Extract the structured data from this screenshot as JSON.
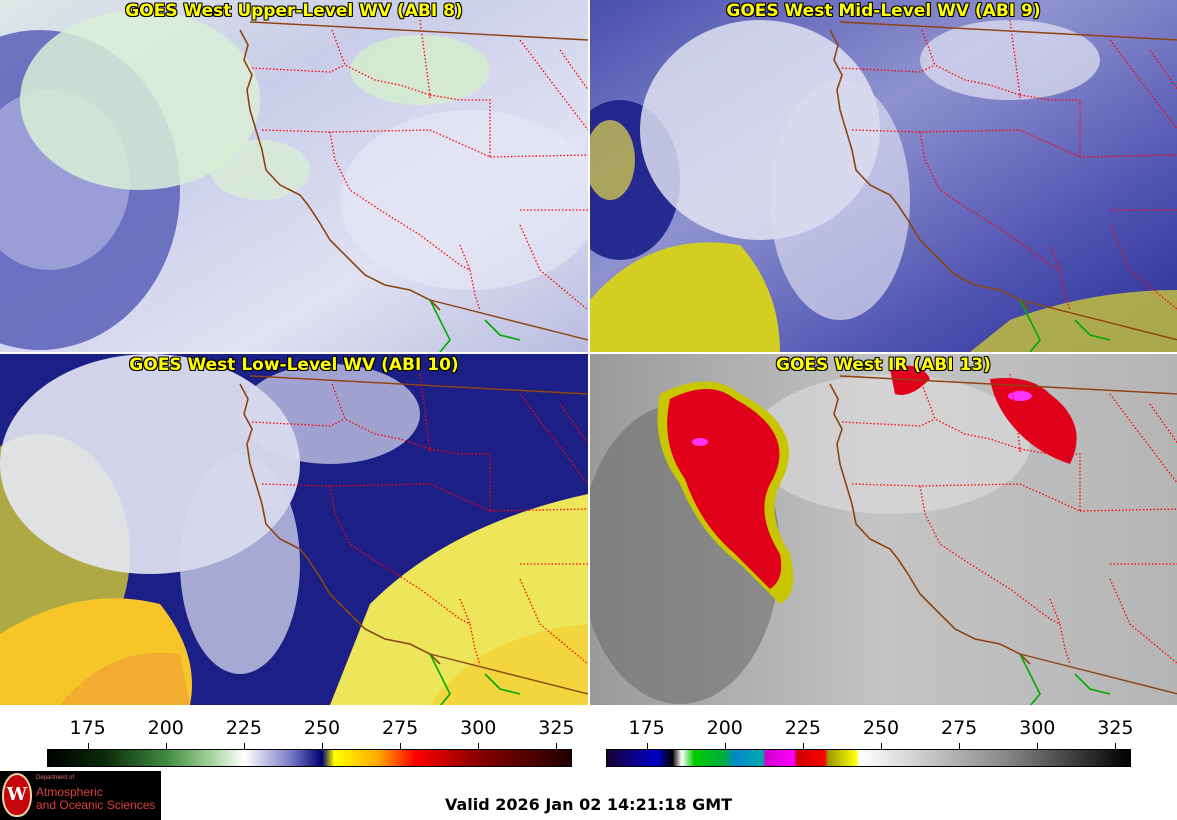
{
  "panels": [
    {
      "title": "GOES West Upper-Level WV (ABI 8)",
      "palette": "wv"
    },
    {
      "title": "GOES West Mid-Level WV (ABI 9)",
      "palette": "wv"
    },
    {
      "title": "GOES West Low-Level WV (ABI 10)",
      "palette": "wv"
    },
    {
      "title": "GOES West IR (ABI 13)",
      "palette": "ir"
    }
  ],
  "colorbars": [
    {
      "ticks": [
        "175",
        "200",
        "225",
        "250",
        "275",
        "300",
        "325"
      ],
      "tick_values": [
        175,
        200,
        225,
        250,
        275,
        300,
        325
      ],
      "range": [
        162,
        330
      ],
      "stops": [
        {
          "v": 162,
          "c": "#000000"
        },
        {
          "v": 180,
          "c": "#0a2a0a"
        },
        {
          "v": 200,
          "c": "#3f8a3f"
        },
        {
          "v": 215,
          "c": "#a8d6a0"
        },
        {
          "v": 225,
          "c": "#ffffff"
        },
        {
          "v": 240,
          "c": "#7b7bc8"
        },
        {
          "v": 250,
          "c": "#000070"
        },
        {
          "v": 254,
          "c": "#ffff00"
        },
        {
          "v": 268,
          "c": "#ffaa00"
        },
        {
          "v": 280,
          "c": "#ff0000"
        },
        {
          "v": 300,
          "c": "#8a0000"
        },
        {
          "v": 330,
          "c": "#200000"
        }
      ]
    },
    {
      "ticks": [
        "175",
        "200",
        "225",
        "250",
        "275",
        "300",
        "325"
      ],
      "tick_values": [
        175,
        200,
        225,
        250,
        275,
        300,
        325
      ],
      "range": [
        162,
        330
      ],
      "stops": [
        {
          "v": 162,
          "c": "#1a0033"
        },
        {
          "v": 178,
          "c": "#0000cc"
        },
        {
          "v": 183,
          "c": "#000000"
        },
        {
          "v": 186,
          "c": "#ffffff"
        },
        {
          "v": 190,
          "c": "#00cc00"
        },
        {
          "v": 200,
          "c": "#00aa44"
        },
        {
          "v": 203,
          "c": "#0088cc"
        },
        {
          "v": 212,
          "c": "#00aaaa"
        },
        {
          "v": 213,
          "c": "#cc00cc"
        },
        {
          "v": 222,
          "c": "#ff00ff"
        },
        {
          "v": 223,
          "c": "#cc0000"
        },
        {
          "v": 232,
          "c": "#ff0000"
        },
        {
          "v": 233,
          "c": "#999900"
        },
        {
          "v": 242,
          "c": "#ffff00"
        },
        {
          "v": 243,
          "c": "#ffffff"
        },
        {
          "v": 290,
          "c": "#888888"
        },
        {
          "v": 330,
          "c": "#000000"
        }
      ]
    }
  ],
  "valid_time": "Valid 2026 Jan 02 14:21:18 GMT",
  "logo": {
    "dept": "Department of",
    "line1": "Atmospheric",
    "line2": "and Oceanic Sciences",
    "seal_letter": "W"
  },
  "colors": {
    "coast": "#8b4513",
    "state_border": "#ff0000",
    "mexico_border": "#00aa00",
    "title": "#ffff00"
  }
}
